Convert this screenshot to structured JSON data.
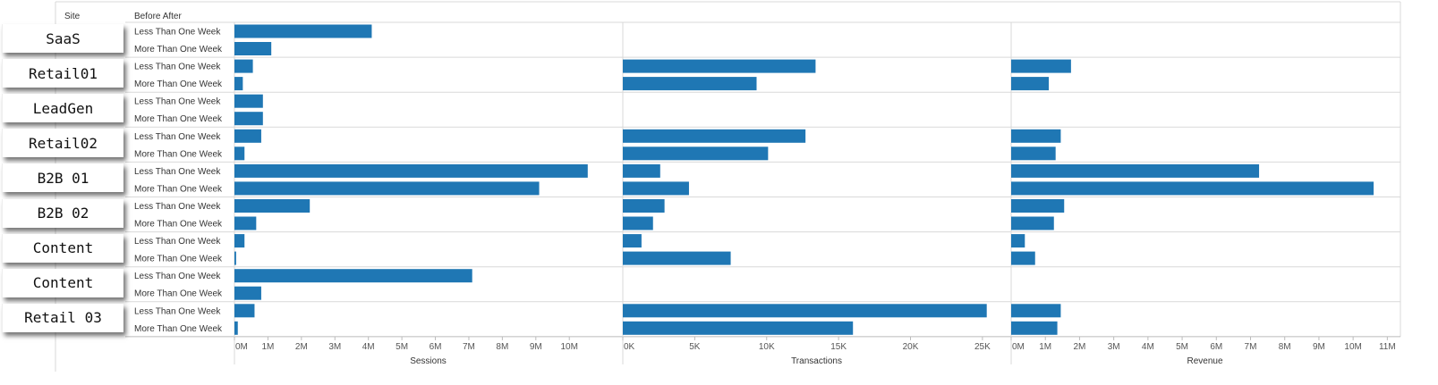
{
  "header": {
    "site": "Site",
    "before_after": "Before After"
  },
  "sites": [
    "SaaS",
    "Retail01",
    "LeadGen",
    "Retail02",
    "B2B 01",
    "B2B 02",
    "Content",
    "Content",
    "Retail 03"
  ],
  "colors": {
    "bar": "#1f77b4",
    "grid": "#d9d9d9",
    "axis_text": "#555555"
  },
  "chart_data": {
    "type": "bar",
    "orientation": "horizontal",
    "row_groups": [
      "SaaS",
      "Retail01",
      "LeadGen",
      "Retail02",
      "B2B 01",
      "B2B 02",
      "Content",
      "Content",
      "Retail 03"
    ],
    "row_categories": [
      "Less Than One Week",
      "More Than One Week"
    ],
    "panels": [
      {
        "name": "Sessions",
        "xlim": [
          0,
          11.25
        ],
        "ticks": [
          0,
          1,
          2,
          3,
          4,
          5,
          6,
          7,
          8,
          9,
          10
        ],
        "tick_labels": [
          "0M",
          "1M",
          "2M",
          "3M",
          "4M",
          "5M",
          "6M",
          "7M",
          "8M",
          "9M",
          "10M"
        ],
        "values": [
          4.1,
          1.1,
          0.55,
          0.25,
          0.85,
          0.85,
          0.8,
          0.3,
          10.55,
          9.1,
          2.25,
          0.65,
          0.3,
          0.05,
          7.1,
          0.8,
          0.6,
          0.1
        ]
      },
      {
        "name": "Transactions",
        "xlim": [
          0,
          26500
        ],
        "ticks": [
          0,
          5000,
          10000,
          15000,
          20000,
          25000
        ],
        "tick_labels": [
          "0K",
          "5K",
          "10K",
          "15K",
          "20K",
          "25K"
        ],
        "values": [
          0,
          0,
          13400,
          9300,
          0,
          0,
          12700,
          10100,
          2600,
          4600,
          2900,
          2100,
          1300,
          7500,
          0,
          0,
          25300,
          16000
        ]
      },
      {
        "name": "Revenue",
        "xlim": [
          0,
          11.2
        ],
        "ticks": [
          0,
          1,
          2,
          3,
          4,
          5,
          6,
          7,
          8,
          9,
          10,
          11
        ],
        "tick_labels": [
          "0M",
          "1M",
          "2M",
          "3M",
          "4M",
          "5M",
          "6M",
          "7M",
          "8M",
          "9M",
          "10M",
          "11M"
        ],
        "values": [
          0,
          0,
          1.75,
          1.1,
          0,
          0,
          1.45,
          1.3,
          7.25,
          10.6,
          1.55,
          1.25,
          0.4,
          0.7,
          0,
          0,
          1.45,
          1.35
        ]
      }
    ]
  }
}
